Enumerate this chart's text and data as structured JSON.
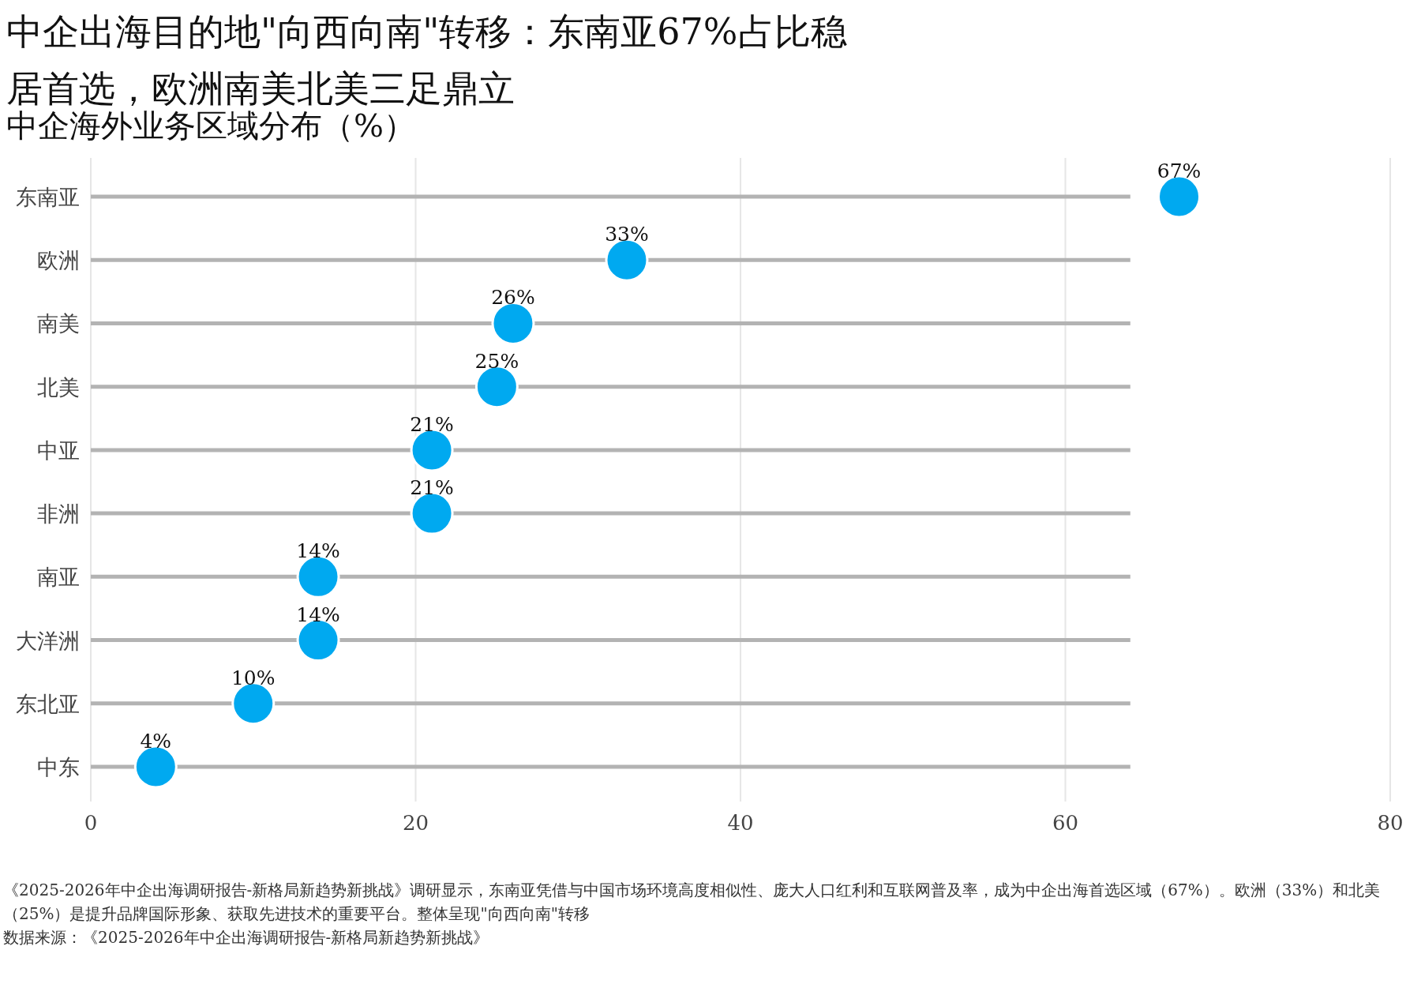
{
  "chart_data": {
    "type": "scatter",
    "orientation": "horizontal",
    "title": "中企出海目的地\"向西向南\"转移：东南亚67%占比稳居首选，欧洲南美北美三足鼎立",
    "subtitle": "中企海外业务区域分布（%）",
    "categories": [
      "东南亚",
      "欧洲",
      "南美",
      "北美",
      "中亚",
      "非洲",
      "南亚",
      "大洋洲",
      "东北亚",
      "中东"
    ],
    "values": [
      67,
      33,
      26,
      25,
      21,
      21,
      14,
      14,
      10,
      4
    ],
    "value_labels": [
      "67%",
      "33%",
      "26%",
      "25%",
      "21%",
      "21%",
      "14%",
      "14%",
      "10%",
      "4%"
    ],
    "color": "#00a9f0",
    "marker": "circle",
    "grid": true,
    "xlim": [
      0,
      80
    ],
    "xticks": [
      0,
      20,
      40,
      60,
      80
    ],
    "annotations": [
      "《2025-2026年中企出海调研报告-新格局新趋势新挑战》调研显示，东南亚凭借与中国市场环境高度相似性、庞大人口红利和互联网普及率，成为中企出海首选区域（67%）。欧洲（33%）和北美（25%）是提升品牌国际形象、获取先进技术的重要平台。整体呈现\"向西向南\"转移",
      "数据来源：《2025-2026年中企出海调研报告-新格局新趋势新挑战》"
    ]
  }
}
